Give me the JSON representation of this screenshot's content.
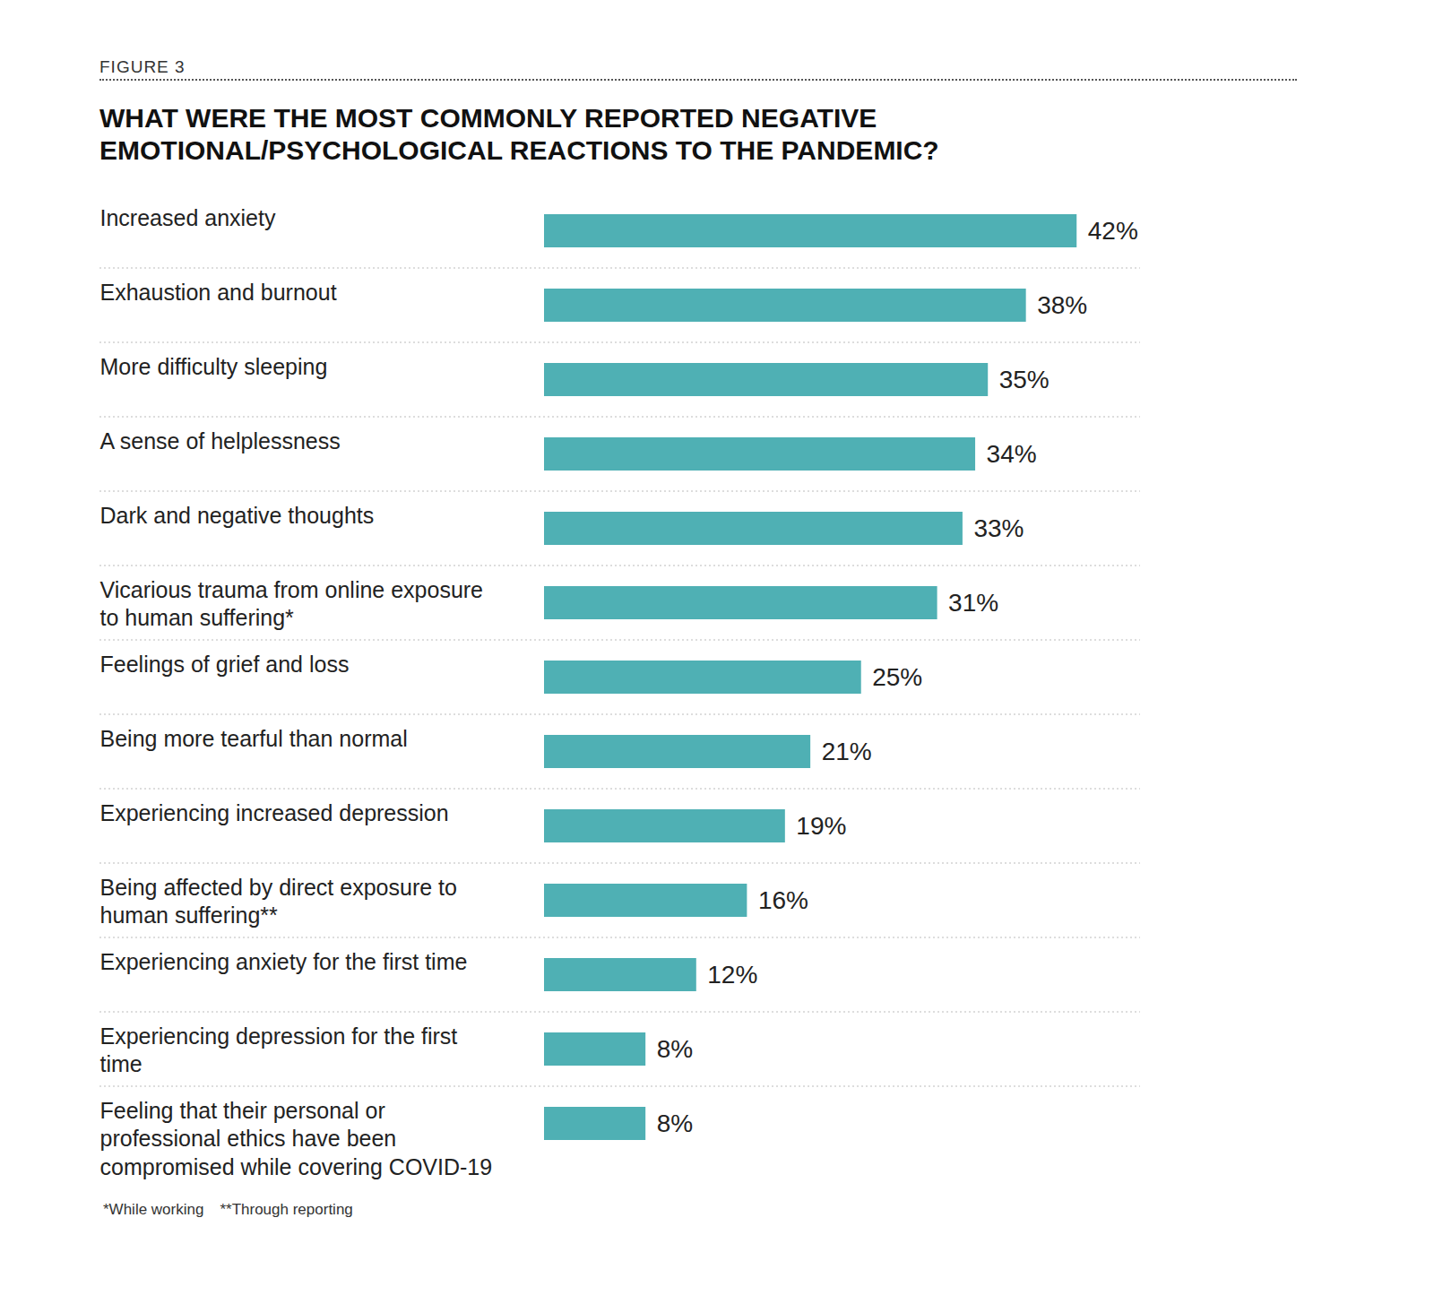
{
  "chart_data": {
    "type": "bar",
    "orientation": "horizontal",
    "figure_label": "FIGURE 3",
    "title": "WHAT WERE THE MOST COMMONLY REPORTED NEGATIVE EMOTIONAL/PSYCHOLOGICAL REACTIONS TO THE PANDEMIC?",
    "categories": [
      "Increased anxiety",
      "Exhaustion and burnout",
      "More difficulty sleeping",
      "A sense of helplessness",
      "Dark and negative thoughts",
      "Vicarious trauma from online exposure to human suffering*",
      "Feelings of grief and loss",
      "Being more tearful than normal",
      "Experiencing increased depression",
      "Being affected by direct exposure to human suffering**",
      "Experiencing anxiety for the first time",
      "Experiencing depression for the first time",
      "Feeling that their personal or professional ethics have been compromised while covering COVID-19"
    ],
    "values": [
      42,
      38,
      35,
      34,
      33,
      31,
      25,
      21,
      19,
      16,
      12,
      8,
      8
    ],
    "value_labels": [
      "42%",
      "38%",
      "35%",
      "34%",
      "33%",
      "31%",
      "25%",
      "21%",
      "19%",
      "16%",
      "12%",
      "8%",
      "8%"
    ],
    "color": "#4fb0b4",
    "xlim": [
      0,
      47
    ],
    "xticks": [],
    "data_labels": true,
    "tick_labels": "y",
    "grid": false,
    "footnotes": [
      "*While working",
      "**Through reporting"
    ]
  }
}
